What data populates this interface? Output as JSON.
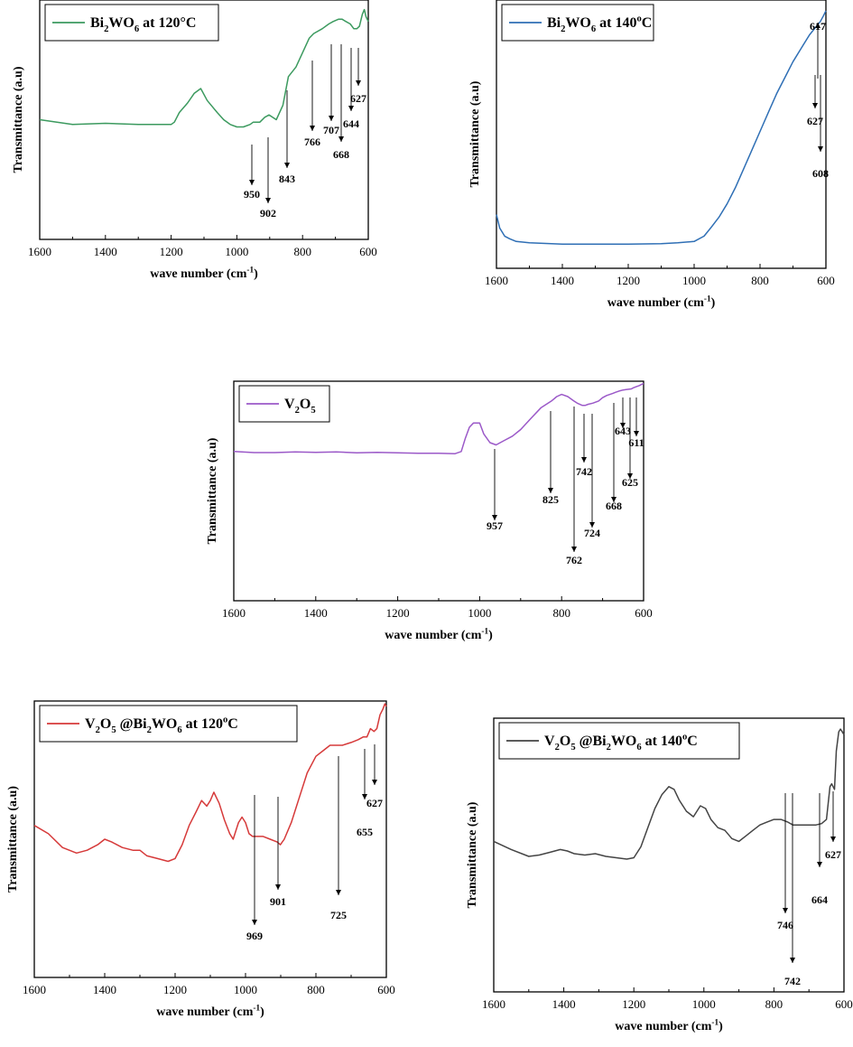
{
  "chart_data": [
    {
      "type": "line",
      "xlabel": "wave number (cm⁻¹)",
      "ylabel": "Transmittance (a.u)",
      "xlim": [
        1600,
        600
      ],
      "x_ticks": [
        "1600",
        "1400",
        "1200",
        "1000",
        "800",
        "600"
      ],
      "legend": "top-left",
      "series": [
        {
          "name": "Bi₂WO₆ at 120°C",
          "color": "#3c9a5f",
          "x": [
            1600,
            1500,
            1400,
            1300,
            1200,
            1190,
            1175,
            1150,
            1130,
            1110,
            1090,
            1060,
            1040,
            1020,
            1000,
            980,
            960,
            950,
            930,
            915,
            902,
            880,
            860,
            843,
            820,
            800,
            780,
            766,
            740,
            720,
            707,
            690,
            680,
            668,
            655,
            644,
            635,
            627,
            618,
            612,
            607,
            600
          ],
          "y": [
            0.5,
            0.48,
            0.485,
            0.48,
            0.48,
            0.49,
            0.53,
            0.57,
            0.61,
            0.63,
            0.58,
            0.53,
            0.5,
            0.48,
            0.47,
            0.47,
            0.48,
            0.49,
            0.49,
            0.51,
            0.52,
            0.5,
            0.56,
            0.68,
            0.72,
            0.78,
            0.84,
            0.86,
            0.88,
            0.9,
            0.91,
            0.92,
            0.92,
            0.91,
            0.9,
            0.88,
            0.88,
            0.89,
            0.94,
            0.96,
            0.93,
            0.91
          ]
        }
      ],
      "annotations": [
        {
          "label": "950",
          "x": 950
        },
        {
          "label": "902",
          "x": 902
        },
        {
          "label": "843",
          "x": 843
        },
        {
          "label": "766",
          "x": 766
        },
        {
          "label": "707",
          "x": 707
        },
        {
          "label": "668",
          "x": 668
        },
        {
          "label": "644",
          "x": 644
        },
        {
          "label": "627",
          "x": 627
        }
      ]
    },
    {
      "type": "line",
      "xlabel": "wave number (cm⁻¹)",
      "ylabel": "Transmittance (a.u)",
      "xlim": [
        1600,
        600
      ],
      "x_ticks": [
        "1600",
        "1400",
        "1200",
        "1000",
        "800",
        "600"
      ],
      "legend": "top-left",
      "series": [
        {
          "name": "Bi₂WO₆ at 140ᵒC",
          "color": "#2f6fb5",
          "x": [
            1600,
            1590,
            1575,
            1560,
            1540,
            1500,
            1400,
            1300,
            1200,
            1100,
            1050,
            1000,
            970,
            950,
            925,
            900,
            875,
            850,
            825,
            800,
            775,
            750,
            725,
            700,
            675,
            650,
            630,
            617,
            608,
            600
          ],
          "y": [
            0.2,
            0.15,
            0.12,
            0.11,
            0.1,
            0.095,
            0.09,
            0.09,
            0.09,
            0.092,
            0.095,
            0.1,
            0.12,
            0.15,
            0.19,
            0.24,
            0.3,
            0.37,
            0.44,
            0.51,
            0.58,
            0.65,
            0.71,
            0.77,
            0.82,
            0.87,
            0.9,
            0.92,
            0.94,
            0.96
          ]
        }
      ],
      "annotations": [
        {
          "label": "617",
          "x": 617
        },
        {
          "label": "627",
          "x": 627
        },
        {
          "label": "608",
          "x": 608
        }
      ]
    },
    {
      "type": "line",
      "xlabel": "wave number (cm⁻¹)",
      "ylabel": "Transmittance (a.u)",
      "xlim": [
        1600,
        600
      ],
      "x_ticks": [
        "1600",
        "1400",
        "1200",
        "1000",
        "800",
        "600"
      ],
      "legend": "top-left",
      "series": [
        {
          "name": "V₂O₅",
          "color": "#9b59c8",
          "x": [
            1600,
            1550,
            1500,
            1450,
            1400,
            1350,
            1300,
            1250,
            1200,
            1150,
            1100,
            1060,
            1045,
            1035,
            1025,
            1015,
            1000,
            990,
            975,
            960,
            940,
            920,
            900,
            875,
            850,
            825,
            812,
            800,
            785,
            770,
            762,
            750,
            742,
            735,
            724,
            710,
            700,
            690,
            675,
            668,
            660,
            650,
            643,
            630,
            625,
            618,
            611,
            605,
            600
          ],
          "y": [
            0.68,
            0.675,
            0.675,
            0.678,
            0.676,
            0.678,
            0.674,
            0.676,
            0.674,
            0.672,
            0.672,
            0.67,
            0.68,
            0.74,
            0.79,
            0.81,
            0.81,
            0.76,
            0.72,
            0.71,
            0.73,
            0.75,
            0.78,
            0.83,
            0.88,
            0.91,
            0.93,
            0.94,
            0.93,
            0.91,
            0.9,
            0.89,
            0.89,
            0.895,
            0.9,
            0.91,
            0.925,
            0.935,
            0.945,
            0.95,
            0.955,
            0.96,
            0.962,
            0.965,
            0.97,
            0.975,
            0.98,
            0.985,
            0.99
          ]
        }
      ],
      "annotations": [
        {
          "label": "957",
          "x": 957
        },
        {
          "label": "825",
          "x": 825
        },
        {
          "label": "762",
          "x": 762
        },
        {
          "label": "742",
          "x": 742
        },
        {
          "label": "724",
          "x": 724
        },
        {
          "label": "668",
          "x": 668
        },
        {
          "label": "643",
          "x": 643
        },
        {
          "label": "625",
          "x": 625
        },
        {
          "label": "611",
          "x": 611
        }
      ]
    },
    {
      "type": "line",
      "xlabel": "wave number (cm⁻¹)",
      "ylabel": "Transmittance (a.u)",
      "xlim": [
        1600,
        600
      ],
      "x_ticks": [
        "1600",
        "1400",
        "1200",
        "1000",
        "800",
        "600"
      ],
      "legend": "top-left",
      "series": [
        {
          "name": "V₂O₅ @Bi₂WO₆ at 120ᵒC",
          "color": "#d63a3a",
          "x": [
            1600,
            1560,
            1520,
            1480,
            1450,
            1420,
            1400,
            1380,
            1350,
            1320,
            1300,
            1280,
            1250,
            1220,
            1200,
            1180,
            1160,
            1140,
            1125,
            1110,
            1100,
            1090,
            1075,
            1060,
            1045,
            1035,
            1020,
            1010,
            1000,
            990,
            980,
            969,
            950,
            930,
            910,
            901,
            890,
            870,
            850,
            825,
            800,
            780,
            760,
            740,
            725,
            700,
            680,
            666,
            655,
            645,
            635,
            627,
            618,
            610,
            604,
            600
          ],
          "y": [
            0.55,
            0.52,
            0.47,
            0.45,
            0.46,
            0.48,
            0.5,
            0.49,
            0.47,
            0.46,
            0.46,
            0.44,
            0.43,
            0.42,
            0.43,
            0.48,
            0.55,
            0.6,
            0.64,
            0.62,
            0.64,
            0.67,
            0.63,
            0.57,
            0.52,
            0.5,
            0.56,
            0.58,
            0.56,
            0.52,
            0.51,
            0.51,
            0.51,
            0.5,
            0.49,
            0.48,
            0.5,
            0.56,
            0.64,
            0.74,
            0.8,
            0.82,
            0.84,
            0.84,
            0.84,
            0.85,
            0.86,
            0.87,
            0.87,
            0.9,
            0.89,
            0.9,
            0.95,
            0.97,
            0.99,
            0.98
          ]
        }
      ],
      "annotations": [
        {
          "label": "969",
          "x": 969
        },
        {
          "label": "901",
          "x": 901
        },
        {
          "label": "725",
          "x": 725
        },
        {
          "label": "655",
          "x": 655
        },
        {
          "label": "627",
          "x": 627
        }
      ]
    },
    {
      "type": "line",
      "xlabel": "wave number (cm⁻¹)",
      "ylabel": "Transmittance (a.u)",
      "xlim": [
        1600,
        600
      ],
      "x_ticks": [
        "1600",
        "1400",
        "1200",
        "1000",
        "800",
        "600"
      ],
      "legend": "top-left",
      "series": [
        {
          "name": "V₂O₅ @Bi₂WO₆ at 140ᵒC",
          "color": "#444444",
          "x": [
            1600,
            1550,
            1500,
            1470,
            1440,
            1410,
            1390,
            1370,
            1340,
            1310,
            1280,
            1250,
            1220,
            1200,
            1180,
            1160,
            1140,
            1120,
            1100,
            1085,
            1070,
            1050,
            1030,
            1010,
            995,
            980,
            960,
            940,
            920,
            900,
            880,
            860,
            840,
            820,
            800,
            780,
            760,
            746,
            742,
            720,
            700,
            680,
            664,
            650,
            640,
            635,
            627,
            622,
            615,
            610,
            605,
            600
          ],
          "y": [
            0.55,
            0.52,
            0.495,
            0.5,
            0.51,
            0.52,
            0.515,
            0.505,
            0.5,
            0.505,
            0.495,
            0.49,
            0.485,
            0.49,
            0.53,
            0.6,
            0.67,
            0.72,
            0.75,
            0.74,
            0.7,
            0.66,
            0.64,
            0.68,
            0.67,
            0.63,
            0.6,
            0.59,
            0.56,
            0.55,
            0.57,
            0.59,
            0.61,
            0.62,
            0.63,
            0.63,
            0.62,
            0.61,
            0.61,
            0.61,
            0.61,
            0.61,
            0.615,
            0.63,
            0.75,
            0.76,
            0.74,
            0.88,
            0.95,
            0.96,
            0.95,
            0.94
          ]
        }
      ],
      "annotations": [
        {
          "label": "746",
          "x": 746
        },
        {
          "label": "742",
          "x": 742
        },
        {
          "label": "664",
          "x": 664
        },
        {
          "label": "627",
          "x": 627
        }
      ]
    }
  ]
}
